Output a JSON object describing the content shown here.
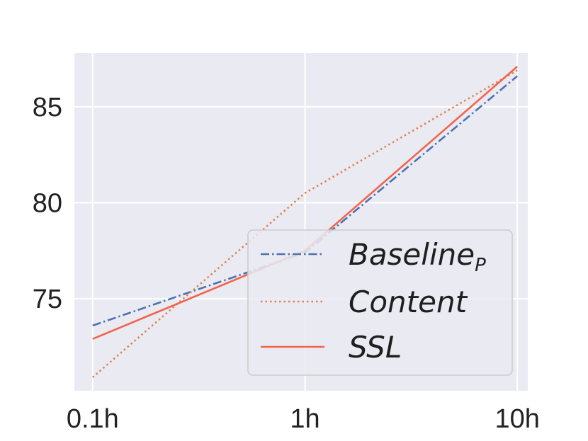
{
  "chart_data": {
    "type": "line",
    "title": "",
    "xlabel": "",
    "ylabel": "",
    "x_scale": "log",
    "x": [
      0.1,
      1,
      10
    ],
    "xticks": [
      {
        "value": 0.1,
        "label": "0.1h"
      },
      {
        "value": 1,
        "label": "1h"
      },
      {
        "value": 10,
        "label": "10h"
      }
    ],
    "xlim": [
      0.082,
      11.2
    ],
    "ylim": [
      70.2,
      87.8
    ],
    "yticks": [
      {
        "value": 75,
        "label": "75"
      },
      {
        "value": 80,
        "label": "80"
      },
      {
        "value": 85,
        "label": "85"
      }
    ],
    "grid": true,
    "legend_position": "lower-right",
    "background_color": "#eaeaf2",
    "grid_color": "#ffffff",
    "series": [
      {
        "name": "Baseline",
        "name_subscript": "P",
        "values": [
          73.6,
          77.4,
          86.6
        ],
        "color": "#4c72b0",
        "line_style": "dashdot"
      },
      {
        "name": "Content",
        "values": [
          70.9,
          80.5,
          86.9
        ],
        "color": "#dd8452",
        "line_style": "dotted"
      },
      {
        "name": "SSL",
        "values": [
          72.9,
          77.5,
          87.1
        ],
        "color": "#f2644c",
        "line_style": "solid"
      }
    ]
  }
}
